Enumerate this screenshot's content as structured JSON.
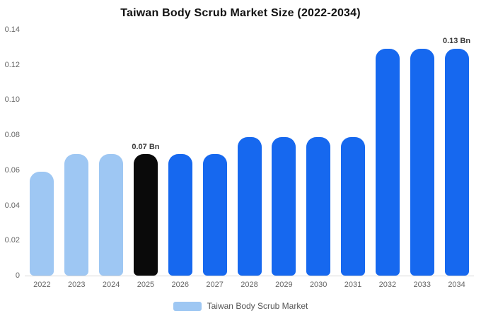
{
  "chart_data": {
    "type": "bar",
    "title": "Taiwan Body Scrub Market Size (2022-2034)",
    "categories": [
      "2022",
      "2023",
      "2024",
      "2025",
      "2026",
      "2027",
      "2028",
      "2029",
      "2030",
      "2031",
      "2032",
      "2033",
      "2034"
    ],
    "values": [
      0.059,
      0.069,
      0.069,
      0.069,
      0.069,
      0.069,
      0.079,
      0.079,
      0.079,
      0.079,
      0.129,
      0.129,
      0.129
    ],
    "unit": "Bn",
    "ylim": [
      0,
      0.14
    ],
    "ytick_labels": [
      "0.14",
      "0.12",
      "0.10",
      "0.08",
      "0.06",
      "0.04",
      "0.02",
      "0"
    ],
    "ytick_values": [
      0.14,
      0.12,
      0.1,
      0.08,
      0.06,
      0.04,
      0.02,
      0
    ],
    "grid": false,
    "xlabel": "",
    "ylabel": "",
    "bar_colors": [
      "#9EC7F3",
      "#9EC7F3",
      "#9EC7F3",
      "#0A0A0A",
      "#1668EF",
      "#1668EF",
      "#1668EF",
      "#1668EF",
      "#1668EF",
      "#1668EF",
      "#1668EF",
      "#1668EF",
      "#1668EF"
    ],
    "colors": {
      "light_blue": "#9EC7F3",
      "highlight_black": "#0A0A0A",
      "primary_blue": "#1668EF",
      "axis_text": "#666666",
      "annotation_text": "#3A3A3A"
    },
    "annotations": [
      {
        "category": "2025",
        "text": "0.07 Bn"
      },
      {
        "category": "2034",
        "text": "0.13 Bn"
      }
    ],
    "legend": {
      "position": "bottom",
      "label": "Taiwan Body Scrub Market",
      "swatch_color": "#9EC7F3"
    }
  }
}
